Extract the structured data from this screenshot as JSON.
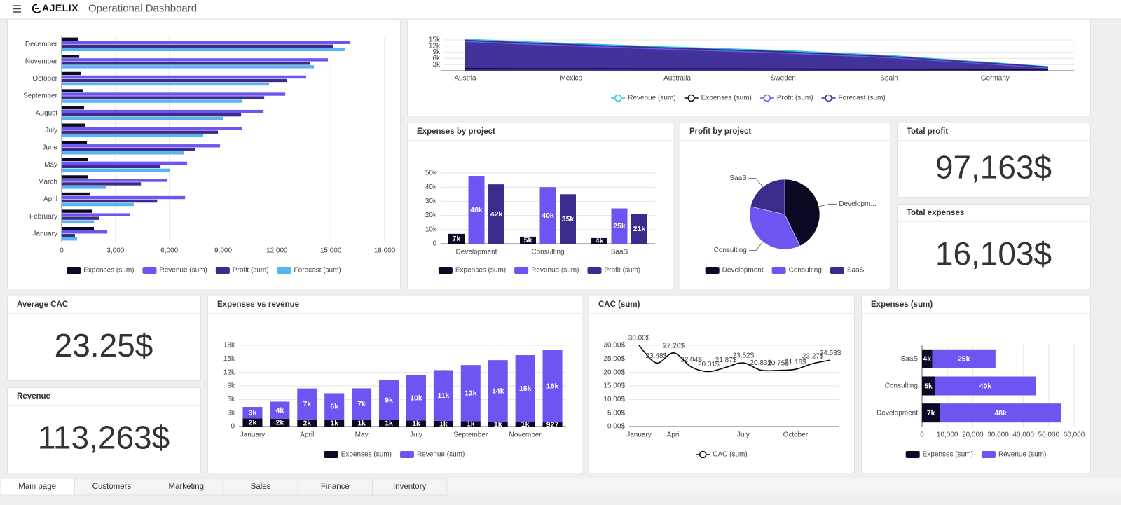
{
  "header": {
    "brand": "AJELIX",
    "title": "Operational Dashboard"
  },
  "tabs": [
    "Main page",
    "Customers",
    "Marketing",
    "Sales",
    "Finance",
    "Inventory"
  ],
  "kpis": [
    {
      "title": "Total profit",
      "value": "97,163$"
    },
    {
      "title": "Total expenses",
      "value": "16,103$"
    },
    {
      "title": "Average CAC",
      "value": "23.25$"
    },
    {
      "title": "Revenue",
      "value": "113,263$"
    }
  ],
  "chart_data": [
    {
      "type": "bar",
      "horizontal": true,
      "stacked": false,
      "categories": [
        "January",
        "February",
        "April",
        "March",
        "May",
        "June",
        "July",
        "August",
        "September",
        "October",
        "November",
        "December"
      ],
      "series": [
        {
          "name": "Expenses (sum)",
          "color": "#0b0a24",
          "values": [
            1800,
            1720,
            1560,
            1480,
            1480,
            1410,
            1330,
            1250,
            1170,
            1090,
            980,
            927
          ]
        },
        {
          "name": "Revenue (sum)",
          "color": "#6c55f0",
          "values": [
            2540,
            3790,
            6880,
            5900,
            6990,
            8830,
            10040,
            11250,
            12460,
            13630,
            14840,
            16050
          ]
        },
        {
          "name": "Profit (sum)",
          "color": "#3c2a8c",
          "values": [
            740,
            2070,
            5320,
            4420,
            5510,
            7420,
            8710,
            10000,
            11290,
            12540,
            13860,
            15123
          ]
        },
        {
          "name": "Forecast (sum)",
          "color": "#56b4ef",
          "values": [
            860,
            1800,
            4020,
            2500,
            6020,
            6800,
            7890,
            9020,
            10080,
            11560,
            14060,
            15780
          ]
        }
      ],
      "xlim": [
        0,
        18000
      ],
      "xticks": [
        0,
        {
          "value": 3000,
          "label": "3,000"
        },
        {
          "value": 6000,
          "label": "6,000"
        },
        {
          "value": 9000,
          "label": "9,000"
        },
        {
          "value": 12000,
          "label": "12,000"
        },
        {
          "value": 15000,
          "label": "15,000"
        },
        {
          "value": 18000,
          "label": "18,000"
        }
      ],
      "grid": true
    },
    {
      "type": "area",
      "categories": [
        "Austria",
        null,
        "Mexico",
        null,
        "Australia",
        null,
        "Sweden",
        null,
        "Spain",
        null,
        "Germany",
        null
      ],
      "series": [
        {
          "name": "Revenue (sum)",
          "color": "#27c6da",
          "values": [
            15300,
            14200,
            13200,
            12300,
            11400,
            10600,
            9800,
            8600,
            7400,
            5600,
            3800,
            2000
          ]
        },
        {
          "name": "Expenses (sum)",
          "color": "#0b0a24",
          "values": [
            1100,
            1000,
            1000,
            950,
            900,
            900,
            850,
            800,
            750,
            700,
            650,
            600
          ]
        },
        {
          "name": "Profit (sum)",
          "color": "#6c55f0",
          "values": [
            14200,
            13100,
            12100,
            11200,
            10300,
            9500,
            8600,
            7500,
            6400,
            4800,
            3100,
            1300
          ]
        },
        {
          "name": "Forecast (sum)",
          "color": "#3c2a8c",
          "values": [
            14800,
            13700,
            12700,
            11800,
            10900,
            10100,
            9200,
            8100,
            6900,
            5200,
            3500,
            1800
          ]
        }
      ],
      "ylim": [
        0,
        16000
      ],
      "yticks": [
        {
          "value": 3000,
          "label": "3k"
        },
        {
          "value": 6000,
          "label": "6k"
        },
        {
          "value": 9000,
          "label": "9k"
        },
        {
          "value": 12000,
          "label": "12k"
        },
        {
          "value": 15000,
          "label": "15k"
        }
      ],
      "grid": true
    },
    {
      "type": "bar",
      "title": "Expenses by project",
      "stacked": false,
      "categories": [
        "Development",
        "Consulting",
        "SaaS"
      ],
      "series": [
        {
          "name": "Expenses (sum)",
          "color": "#0b0a24",
          "values": [
            7000,
            5000,
            4000
          ],
          "value_labels": [
            "7k",
            "5k",
            "4k"
          ]
        },
        {
          "name": "Revenue (sum)",
          "color": "#6c55f0",
          "values": [
            48000,
            40000,
            25000
          ],
          "value_labels": [
            "48k",
            "40k",
            "25k"
          ]
        },
        {
          "name": "Profit (sum)",
          "color": "#3c2a8c",
          "values": [
            42000,
            35000,
            21000
          ],
          "value_labels": [
            "42k",
            "35k",
            "21k"
          ]
        }
      ],
      "ylim": [
        0,
        50000
      ],
      "yticks": [
        0,
        {
          "value": 10000,
          "label": "10k"
        },
        {
          "value": 20000,
          "label": "20k"
        },
        {
          "value": 30000,
          "label": "30k"
        },
        {
          "value": 40000,
          "label": "40k"
        },
        {
          "value": 50000,
          "label": "50k"
        }
      ],
      "grid": true
    },
    {
      "type": "pie",
      "title": "Profit by project",
      "categories": [
        "Development",
        "Consulting",
        "SaaS"
      ],
      "slice_labels": [
        "Developm...",
        "Consulting",
        "SaaS"
      ],
      "values": [
        42000,
        35000,
        21000
      ],
      "colors": [
        "#0b0a24",
        "#6c55f0",
        "#3c2a8c"
      ]
    },
    {
      "type": "bar",
      "title": "Expenses vs revenue",
      "stacked": true,
      "categories": [
        "January",
        null,
        "April",
        null,
        "May",
        null,
        "July",
        null,
        "September",
        null,
        "November",
        null
      ],
      "series": [
        {
          "name": "Expenses (sum)",
          "color": "#0b0a24",
          "values": [
            1800,
            1720,
            1560,
            1480,
            1480,
            1410,
            1330,
            1250,
            1170,
            1090,
            980,
            927
          ],
          "value_labels": [
            "2k",
            "2k",
            "2k",
            "1k",
            "1k",
            "1k",
            "1k",
            "1k",
            "1k",
            "1k",
            "1k",
            "927"
          ]
        },
        {
          "name": "Revenue (sum)",
          "color": "#6c55f0",
          "values": [
            2540,
            3790,
            6880,
            5900,
            6990,
            8830,
            10040,
            11250,
            12460,
            13630,
            14840,
            16050
          ],
          "value_labels": [
            "3k",
            "4k",
            "7k",
            "6k",
            "7k",
            "9k",
            "10k",
            "11k",
            "12k",
            "14k",
            "15k",
            "16k"
          ]
        }
      ],
      "ylim": [
        0,
        18000
      ],
      "yticks": [
        0,
        {
          "value": 3000,
          "label": "3k"
        },
        {
          "value": 6000,
          "label": "6k"
        },
        {
          "value": 9000,
          "label": "9k"
        },
        {
          "value": 12000,
          "label": "12k"
        },
        {
          "value": 15000,
          "label": "15k"
        },
        {
          "value": 18000,
          "label": "18k"
        }
      ],
      "grid": true
    },
    {
      "type": "line",
      "title": "CAC (sum)",
      "categories": [
        "January",
        null,
        "April",
        null,
        null,
        null,
        "July",
        null,
        null,
        "October",
        null,
        null
      ],
      "series": [
        {
          "name": "CAC (sum)",
          "color": "#000000",
          "values": [
            30.0,
            23.48,
            27.2,
            22.04,
            20.31,
            21.87,
            23.52,
            20.83,
            20.75,
            21.16,
            23.27,
            24.53
          ],
          "value_labels": [
            "30.00$",
            "23.48$",
            "27.20$",
            "22.04$",
            "20.31$",
            "21.87$",
            "23.52$",
            "20.83$",
            "20.75$",
            "21.16$",
            "23.27$",
            "24.53$"
          ]
        }
      ],
      "ylim": [
        0,
        30
      ],
      "yticks": [
        {
          "value": 0,
          "label": "0.00$"
        },
        {
          "value": 5,
          "label": "5.00$"
        },
        {
          "value": 10,
          "label": "10.00$"
        },
        {
          "value": 15,
          "label": "15.00$"
        },
        {
          "value": 20,
          "label": "20.00$"
        },
        {
          "value": 25,
          "label": "25.00$"
        },
        {
          "value": 30,
          "label": "30.00$"
        }
      ],
      "grid": true
    },
    {
      "type": "bar",
      "title": "Expenses (sum)",
      "horizontal": true,
      "stacked": true,
      "categories": [
        "Development",
        "Consulting",
        "SaaS"
      ],
      "series": [
        {
          "name": "Expenses (sum)",
          "color": "#0b0a24",
          "values": [
            7000,
            5000,
            4000
          ],
          "value_labels": [
            "7k",
            "5k",
            "4k"
          ]
        },
        {
          "name": "Revenue (sum)",
          "color": "#6c55f0",
          "values": [
            48000,
            40000,
            25000
          ],
          "value_labels": [
            "48k",
            "40k",
            "25k"
          ]
        }
      ],
      "xlim": [
        0,
        60000
      ],
      "xticks": [
        0,
        {
          "value": 10000,
          "label": "10,000"
        },
        {
          "value": 20000,
          "label": "20,000"
        },
        {
          "value": 30000,
          "label": "30,000"
        },
        {
          "value": 40000,
          "label": "40,000"
        },
        {
          "value": 50000,
          "label": "50,000"
        },
        {
          "value": 60000,
          "label": "60,000"
        }
      ],
      "grid": true
    }
  ]
}
